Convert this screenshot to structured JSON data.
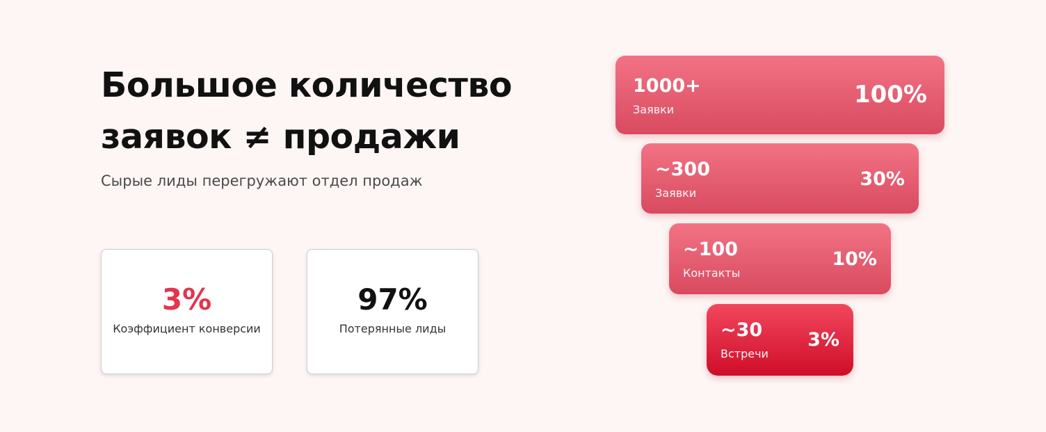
{
  "title_lines": [
    "Большое количество",
    "заявок ≠ продажи"
  ],
  "subtitle": "Сырые лиды перегружают отдел продаж",
  "stats": [
    {
      "value": "3%",
      "label": "Коэффициент конверсии"
    },
    {
      "value": "97%",
      "label": "Потерянные лиды"
    }
  ],
  "funnel": [
    {
      "count": "1000+",
      "label": "Заявки",
      "percent": "100%"
    },
    {
      "count": "~300",
      "label": "Заявки",
      "percent": "30%"
    },
    {
      "count": "~100",
      "label": "Контакты",
      "percent": "10%"
    },
    {
      "count": "~30",
      "label": "Встречи",
      "percent": "3%"
    }
  ]
}
